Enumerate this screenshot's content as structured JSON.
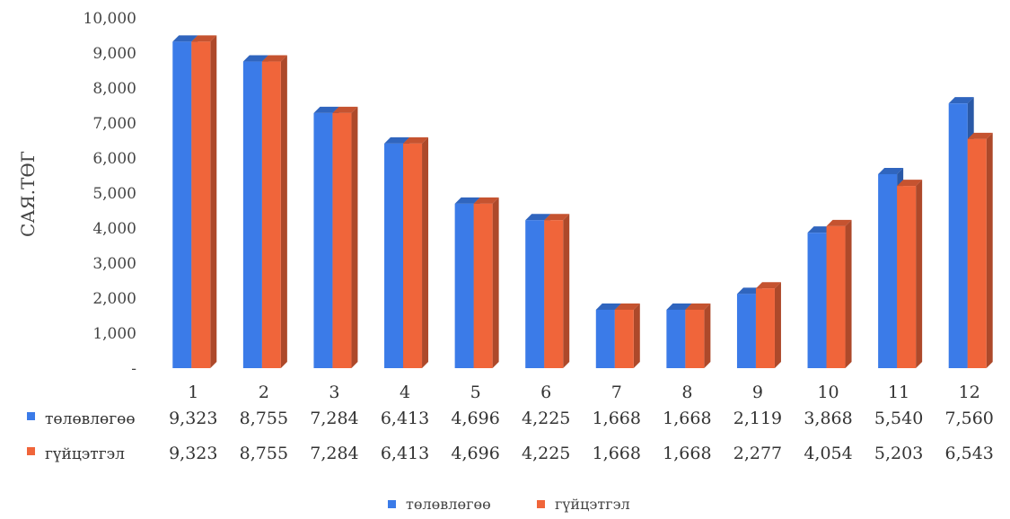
{
  "chart_data": {
    "type": "bar",
    "ylabel": "САЯ.ТӨГ",
    "ylim": [
      0,
      10000
    ],
    "yticks": [
      "-",
      "1,000",
      "2,000",
      "3,000",
      "4,000",
      "5,000",
      "6,000",
      "7,000",
      "8,000",
      "9,000",
      "10,000"
    ],
    "categories": [
      "1",
      "2",
      "3",
      "4",
      "5",
      "6",
      "7",
      "8",
      "9",
      "10",
      "11",
      "12"
    ],
    "series": [
      {
        "name": "төлөвлөгөө",
        "color": "#3b7be8",
        "values": [
          9323,
          8755,
          7284,
          6413,
          4696,
          4225,
          1668,
          1668,
          2119,
          3868,
          5540,
          7560
        ],
        "labels": [
          "9,323",
          "8,755",
          "7,284",
          "6,413",
          "4,696",
          "4,225",
          "1,668",
          "1,668",
          "2,119",
          "3,868",
          "5,540",
          "7,560"
        ]
      },
      {
        "name": "гүйцэтгэл",
        "color": "#f0653a",
        "values": [
          9323,
          8755,
          7284,
          6413,
          4696,
          4225,
          1668,
          1668,
          2277,
          4054,
          5203,
          6543
        ],
        "labels": [
          "9,323",
          "8,755",
          "7,284",
          "6,413",
          "4,696",
          "4,225",
          "1,668",
          "1,668",
          "2,277",
          "4,054",
          "5,203",
          "6,543"
        ]
      }
    ],
    "data_table": true,
    "legend_position": "bottom",
    "grid": false
  }
}
